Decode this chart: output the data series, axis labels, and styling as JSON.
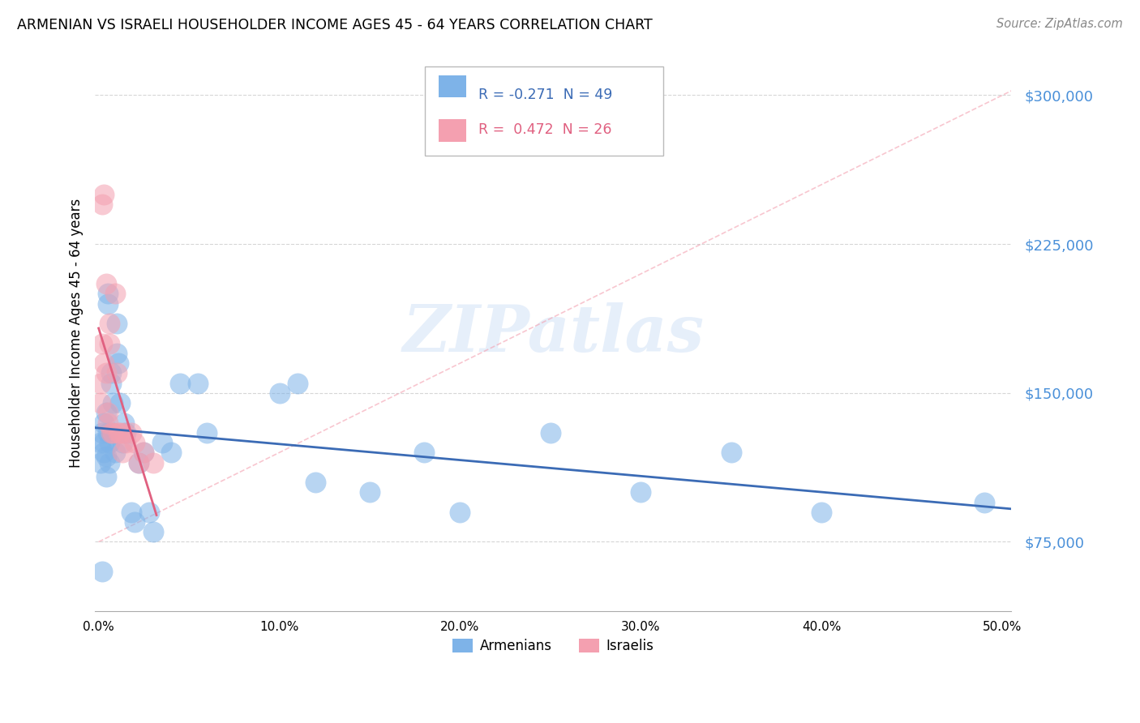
{
  "title": "ARMENIAN VS ISRAELI HOUSEHOLDER INCOME AGES 45 - 64 YEARS CORRELATION CHART",
  "source": "Source: ZipAtlas.com",
  "ylabel": "Householder Income Ages 45 - 64 years",
  "ytick_labels": [
    "$75,000",
    "$150,000",
    "$225,000",
    "$300,000"
  ],
  "ytick_values": [
    75000,
    150000,
    225000,
    300000
  ],
  "ymin": 40000,
  "ymax": 320000,
  "xmin": -0.002,
  "xmax": 0.505,
  "armenian_color": "#7EB3E8",
  "israeli_color": "#F4A0B0",
  "armenian_line_color": "#3B6BB5",
  "israeli_line_color": "#E06080",
  "diagonal_color": "#F4A0B0",
  "legend_armenian_r": "-0.271",
  "legend_armenian_n": "49",
  "legend_israeli_r": "0.472",
  "legend_israeli_n": "26",
  "armenian_x": [
    0.001,
    0.001,
    0.002,
    0.002,
    0.003,
    0.003,
    0.003,
    0.004,
    0.004,
    0.004,
    0.005,
    0.005,
    0.005,
    0.006,
    0.006,
    0.007,
    0.007,
    0.008,
    0.008,
    0.009,
    0.01,
    0.01,
    0.011,
    0.012,
    0.013,
    0.014,
    0.015,
    0.018,
    0.02,
    0.022,
    0.025,
    0.028,
    0.03,
    0.035,
    0.04,
    0.045,
    0.055,
    0.06,
    0.1,
    0.11,
    0.12,
    0.15,
    0.18,
    0.2,
    0.25,
    0.3,
    0.35,
    0.4,
    0.49
  ],
  "armenian_y": [
    125000,
    115000,
    130000,
    60000,
    120000,
    125000,
    135000,
    118000,
    140000,
    108000,
    195000,
    200000,
    130000,
    125000,
    115000,
    155000,
    160000,
    130000,
    145000,
    120000,
    170000,
    185000,
    165000,
    145000,
    125000,
    135000,
    130000,
    90000,
    85000,
    115000,
    120000,
    90000,
    80000,
    125000,
    120000,
    155000,
    155000,
    130000,
    150000,
    155000,
    105000,
    100000,
    120000,
    90000,
    130000,
    100000,
    120000,
    90000,
    95000
  ],
  "israeli_x": [
    0.001,
    0.001,
    0.002,
    0.002,
    0.003,
    0.003,
    0.004,
    0.004,
    0.005,
    0.005,
    0.006,
    0.006,
    0.007,
    0.008,
    0.009,
    0.01,
    0.011,
    0.012,
    0.013,
    0.014,
    0.015,
    0.018,
    0.02,
    0.022,
    0.025,
    0.03
  ],
  "israeli_y": [
    145000,
    155000,
    175000,
    245000,
    165000,
    250000,
    205000,
    160000,
    140000,
    135000,
    185000,
    175000,
    130000,
    130000,
    200000,
    160000,
    130000,
    130000,
    120000,
    130000,
    125000,
    130000,
    125000,
    115000,
    120000,
    115000
  ],
  "watermark": "ZIPatlas",
  "grid_color": "#CCCCCC",
  "background_color": "#FFFFFF",
  "xtick_positions": [
    0.0,
    0.1,
    0.2,
    0.3,
    0.4,
    0.5
  ],
  "xtick_labels": [
    "0.0%",
    "10.0%",
    "20.0%",
    "30.0%",
    "40.0%",
    "50.0%"
  ]
}
